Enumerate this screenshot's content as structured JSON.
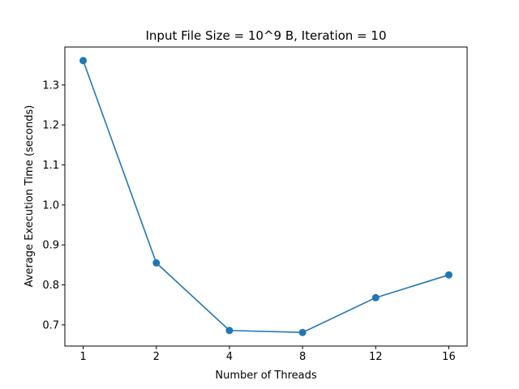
{
  "chart_data": {
    "type": "line",
    "title": "Input File Size = 10^9 B, Iteration = 10",
    "xlabel": "Number of Threads",
    "ylabel": "Average Execution Time (seconds)",
    "categories": [
      "1",
      "2",
      "4",
      "8",
      "12",
      "16"
    ],
    "series": [
      {
        "values": [
          1.361,
          0.855,
          0.686,
          0.681,
          0.768,
          0.825
        ],
        "color": "#1f77b4",
        "marker": "circle"
      }
    ],
    "yticks": [
      0.7,
      0.8,
      0.9,
      1.0,
      1.1,
      1.2,
      1.3
    ],
    "ytick_labels": [
      "0.7",
      "0.8",
      "0.9",
      "1.0",
      "1.1",
      "1.2",
      "1.3"
    ],
    "ylim": [
      0.647,
      1.395
    ],
    "grid": false,
    "legend": false
  }
}
